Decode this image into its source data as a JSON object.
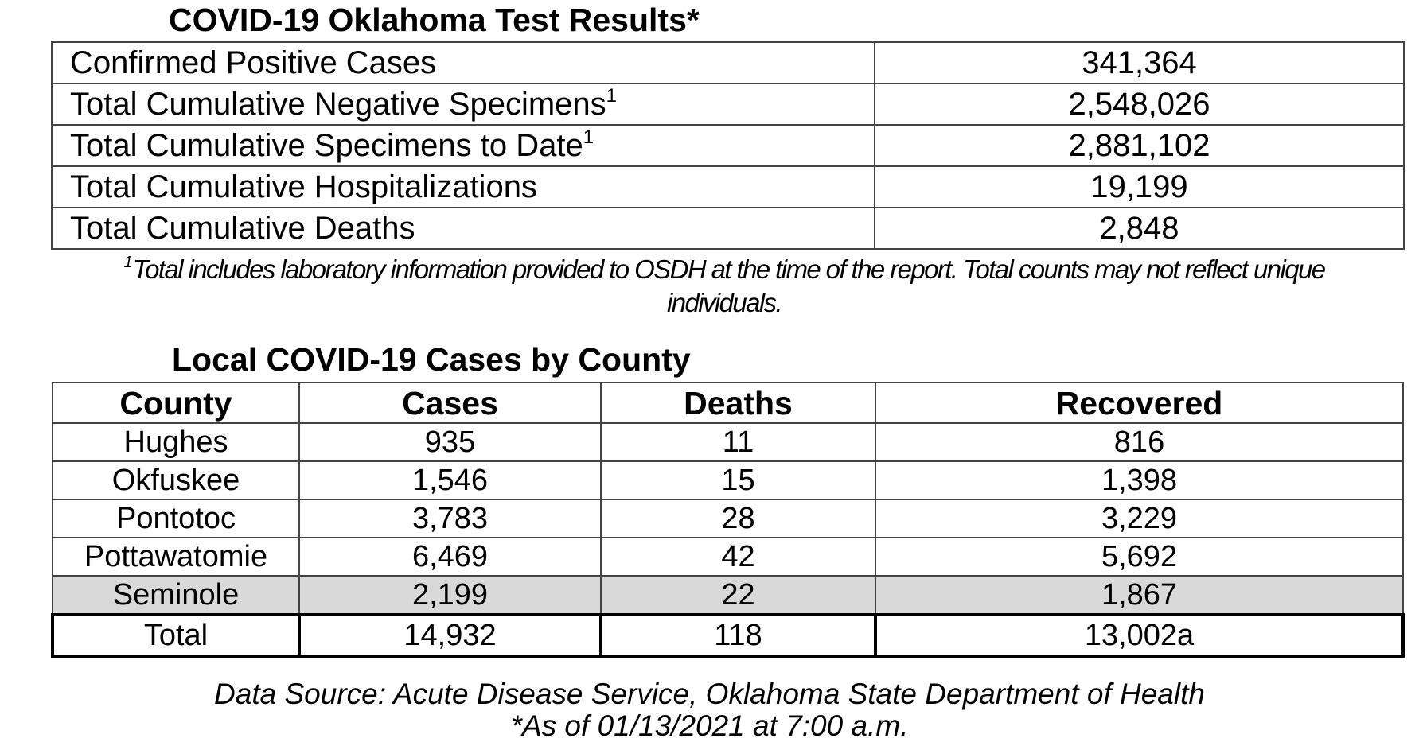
{
  "test_results": {
    "title": "COVID-19 Oklahoma Test Results*",
    "rows": [
      {
        "label": "Confirmed Positive Cases",
        "value": "341,364"
      },
      {
        "label": "Total Cumulative Negative Specimens",
        "note": "1",
        "value": "2,548,026"
      },
      {
        "label": "Total Cumulative Specimens to Date",
        "note": "1",
        "value": "2,881,102"
      },
      {
        "label": "Total Cumulative Hospitalizations",
        "value": "19,199"
      },
      {
        "label": "Total Cumulative Deaths",
        "value": "2,848"
      }
    ]
  },
  "footnote": {
    "marker": "1",
    "text": "Total includes laboratory information provided to OSDH at the time of the report. Total counts may not reflect unique individuals."
  },
  "county_table": {
    "title": "Local COVID-19 Cases by County",
    "header": [
      "County",
      "Cases",
      "Deaths",
      "Recovered"
    ],
    "rows": [
      [
        "Hughes",
        "935",
        "11",
        "816"
      ],
      [
        "Okfuskee",
        "1,546",
        "15",
        "1,398"
      ],
      [
        "Pontotoc",
        "3,783",
        "28",
        "3,229"
      ],
      [
        "Pottawatomie",
        "6,469",
        "42",
        "5,692"
      ],
      [
        "Seminole",
        "2,199",
        "22",
        "1,867"
      ]
    ],
    "total": [
      "Total",
      "14,932",
      "118",
      "13,002a"
    ]
  },
  "source": "Data Source: Acute Disease Service, Oklahoma State Department of Health",
  "as_of": "*As of 01/13/2021 at 7:00 a.m."
}
